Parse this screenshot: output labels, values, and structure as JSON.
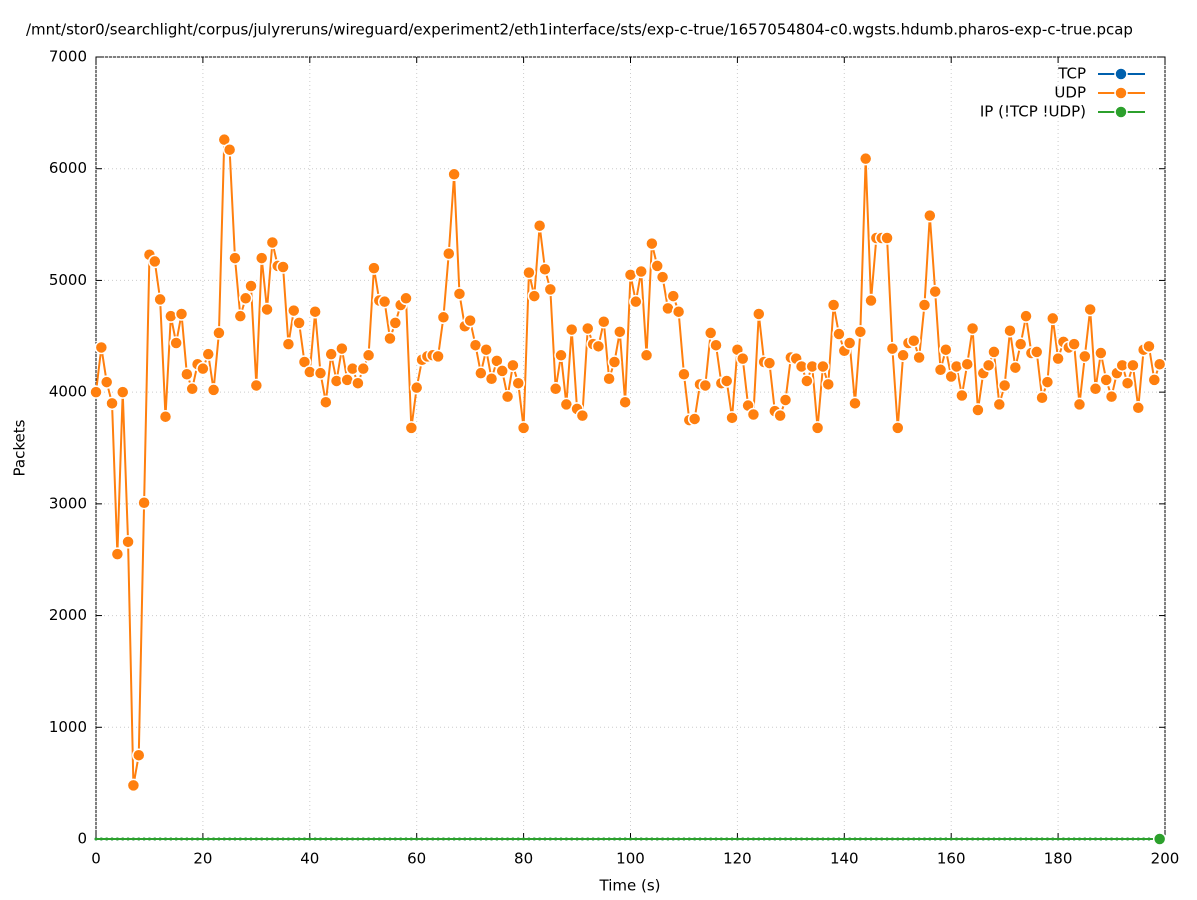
{
  "chart_data": {
    "type": "line",
    "title": "/mnt/stor0/searchlight/corpus/julyreruns/wireguard/experiment2/eth1interface/sts/exp-c-true/1657054804-c0.wgsts.hdumb.pharos-exp-c-true.pcap",
    "x_label": "Time (s)",
    "y_label": "Packets",
    "xlim": [
      0,
      200
    ],
    "xticks": [
      0,
      20,
      40,
      60,
      80,
      100,
      120,
      140,
      160,
      180,
      200
    ],
    "ylim": [
      0,
      7000
    ],
    "yticks": [
      0,
      1000,
      2000,
      3000,
      4000,
      5000,
      6000,
      7000
    ],
    "grid": true,
    "legend": "top-right",
    "x": [
      0,
      1,
      2,
      3,
      4,
      5,
      6,
      7,
      8,
      9,
      10,
      11,
      12,
      13,
      14,
      15,
      16,
      17,
      18,
      19,
      20,
      21,
      22,
      23,
      24,
      25,
      26,
      27,
      28,
      29,
      30,
      31,
      32,
      33,
      34,
      35,
      36,
      37,
      38,
      39,
      40,
      41,
      42,
      43,
      44,
      45,
      46,
      47,
      48,
      49,
      50,
      51,
      52,
      53,
      54,
      55,
      56,
      57,
      58,
      59,
      60,
      61,
      62,
      63,
      64,
      65,
      66,
      67,
      68,
      69,
      70,
      71,
      72,
      73,
      74,
      75,
      76,
      77,
      78,
      79,
      80,
      81,
      82,
      83,
      84,
      85,
      86,
      87,
      88,
      89,
      90,
      91,
      92,
      93,
      94,
      95,
      96,
      97,
      98,
      99,
      100,
      101,
      102,
      103,
      104,
      105,
      106,
      107,
      108,
      109,
      110,
      111,
      112,
      113,
      114,
      115,
      116,
      117,
      118,
      119,
      120,
      121,
      122,
      123,
      124,
      125,
      126,
      127,
      128,
      129,
      130,
      131,
      132,
      133,
      134,
      135,
      136,
      137,
      138,
      139,
      140,
      141,
      142,
      143,
      144,
      145,
      146,
      147,
      148,
      149,
      150,
      151,
      152,
      153,
      154,
      155,
      156,
      157,
      158,
      159,
      160,
      161,
      162,
      163,
      164,
      165,
      166,
      167,
      168,
      169,
      170,
      171,
      172,
      173,
      174,
      175,
      176,
      177,
      178,
      179,
      180,
      181,
      182,
      183,
      184,
      185,
      186,
      187,
      188,
      189,
      190,
      191,
      192,
      193,
      194,
      195,
      196,
      197,
      198,
      199
    ],
    "series": [
      {
        "name": "TCP",
        "color": "#0060ad",
        "values": [
          0,
          0,
          0,
          0,
          0,
          0,
          0,
          0,
          0,
          0,
          0,
          0,
          0,
          0,
          0,
          0,
          0,
          0,
          0,
          0,
          0,
          0,
          0,
          0,
          0,
          0,
          0,
          0,
          0,
          0,
          0,
          0,
          0,
          0,
          0,
          0,
          0,
          0,
          0,
          0,
          0,
          0,
          0,
          0,
          0,
          0,
          0,
          0,
          0,
          0,
          0,
          0,
          0,
          0,
          0,
          0,
          0,
          0,
          0,
          0,
          0,
          0,
          0,
          0,
          0,
          0,
          0,
          0,
          0,
          0,
          0,
          0,
          0,
          0,
          0,
          0,
          0,
          0,
          0,
          0,
          0,
          0,
          0,
          0,
          0,
          0,
          0,
          0,
          0,
          0,
          0,
          0,
          0,
          0,
          0,
          0,
          0,
          0,
          0,
          0,
          0,
          0,
          0,
          0,
          0,
          0,
          0,
          0,
          0,
          0,
          0,
          0,
          0,
          0,
          0,
          0,
          0,
          0,
          0,
          0,
          0,
          0,
          0,
          0,
          0,
          0,
          0,
          0,
          0,
          0,
          0,
          0,
          0,
          0,
          0,
          0,
          0,
          0,
          0,
          0,
          0,
          0,
          0,
          0,
          0,
          0,
          0,
          0,
          0,
          0,
          0,
          0,
          0,
          0,
          0,
          0,
          0,
          0,
          0,
          0,
          0,
          0,
          0,
          0,
          0,
          0,
          0,
          0,
          0,
          0,
          0,
          0,
          0,
          0,
          0,
          0,
          0,
          0,
          0,
          0,
          0,
          0,
          0,
          0,
          0,
          0,
          0,
          0,
          0,
          0,
          0,
          0,
          0,
          0,
          0,
          0,
          0,
          0,
          0,
          0
        ]
      },
      {
        "name": "UDP",
        "color": "#ff7f0e",
        "values": [
          4000,
          4400,
          4090,
          3900,
          2550,
          4000,
          2660,
          480,
          750,
          3010,
          5230,
          5170,
          4830,
          3780,
          4680,
          4440,
          4700,
          4160,
          4030,
          4250,
          4210,
          4340,
          4020,
          4530,
          6260,
          6170,
          5200,
          4680,
          4840,
          4950,
          4060,
          5200,
          4740,
          5340,
          5130,
          5120,
          4430,
          4730,
          4620,
          4270,
          4180,
          4720,
          4170,
          3910,
          4340,
          4100,
          4390,
          4110,
          4210,
          4080,
          4210,
          4330,
          5110,
          4820,
          4810,
          4480,
          4620,
          4780,
          4840,
          3680,
          4040,
          4290,
          4320,
          4330,
          4320,
          4670,
          5240,
          5950,
          4880,
          4590,
          4640,
          4420,
          4170,
          4380,
          4120,
          4280,
          4190,
          3960,
          4240,
          4080,
          3680,
          5070,
          4860,
          5490,
          5100,
          4920,
          4030,
          4330,
          3890,
          4560,
          3850,
          3790,
          4570,
          4430,
          4410,
          4630,
          4120,
          4270,
          4540,
          3910,
          5050,
          4810,
          5080,
          4330,
          5330,
          5130,
          5030,
          4750,
          4860,
          4720,
          4160,
          3750,
          3760,
          4070,
          4060,
          4530,
          4420,
          4080,
          4100,
          3770,
          4380,
          4300,
          3880,
          3800,
          4700,
          4270,
          4260,
          3830,
          3790,
          3930,
          4310,
          4300,
          4230,
          4100,
          4230,
          3680,
          4230,
          4070,
          4780,
          4520,
          4370,
          4440,
          3900,
          4540,
          6090,
          4820,
          5380,
          5380,
          5380,
          4390,
          3680,
          4330,
          4440,
          4460,
          4310,
          4780,
          5580,
          4900,
          4200,
          4380,
          4140,
          4230,
          3970,
          4250,
          4570,
          3840,
          4170,
          4240,
          4360,
          3890,
          4060,
          4550,
          4220,
          4430,
          4680,
          4350,
          4360,
          3950,
          4090,
          4660,
          4300,
          4450,
          4400,
          4430,
          3890,
          4320,
          4740,
          4030,
          4350,
          4110,
          3960,
          4170,
          4240,
          4080,
          4240,
          3860,
          4380,
          4410,
          4110,
          4250
        ]
      },
      {
        "name": "IP (!TCP  !UDP)",
        "color": "#2ca02c",
        "values": [
          0,
          0,
          0,
          0,
          0,
          0,
          0,
          0,
          0,
          0,
          0,
          0,
          0,
          0,
          0,
          0,
          0,
          0,
          0,
          0,
          0,
          0,
          0,
          0,
          0,
          0,
          0,
          0,
          0,
          0,
          0,
          0,
          0,
          0,
          0,
          0,
          0,
          0,
          0,
          0,
          0,
          0,
          0,
          0,
          0,
          0,
          0,
          0,
          0,
          0,
          0,
          0,
          0,
          0,
          0,
          0,
          0,
          0,
          0,
          0,
          0,
          0,
          0,
          0,
          0,
          0,
          0,
          0,
          0,
          0,
          0,
          0,
          0,
          0,
          0,
          0,
          0,
          0,
          0,
          0,
          0,
          0,
          0,
          0,
          0,
          0,
          0,
          0,
          0,
          0,
          0,
          0,
          0,
          0,
          0,
          0,
          0,
          0,
          0,
          0,
          0,
          0,
          0,
          0,
          0,
          0,
          0,
          0,
          0,
          0,
          0,
          0,
          0,
          0,
          0,
          0,
          0,
          0,
          0,
          0,
          0,
          0,
          0,
          0,
          0,
          0,
          0,
          0,
          0,
          0,
          0,
          0,
          0,
          0,
          0,
          0,
          0,
          0,
          0,
          0,
          0,
          0,
          0,
          0,
          0,
          0,
          0,
          0,
          0,
          0,
          0,
          0,
          0,
          0,
          0,
          0,
          0,
          0,
          0,
          0,
          0,
          0,
          0,
          0,
          0,
          0,
          0,
          0,
          0,
          0,
          0,
          0,
          0,
          0,
          0,
          0,
          0,
          0,
          0,
          0,
          0,
          0,
          0,
          0,
          0,
          0,
          0,
          0,
          0,
          0,
          0,
          0,
          0,
          0,
          0,
          0,
          0,
          0,
          0,
          0
        ]
      }
    ]
  }
}
